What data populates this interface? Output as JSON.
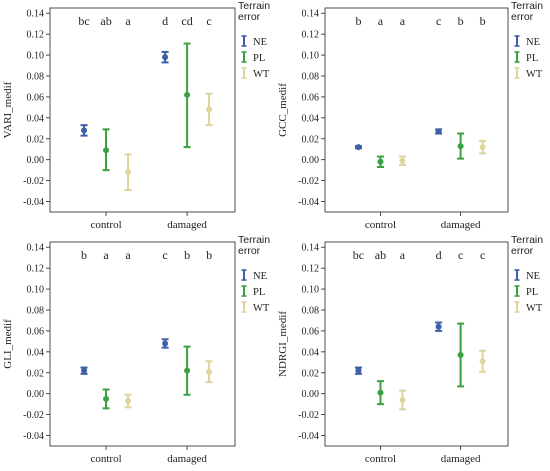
{
  "colors": {
    "NE": "#3d5ea8",
    "PL": "#3aa040",
    "WT": "#ddd59c"
  },
  "chart_data": [
    {
      "type": "errorbar",
      "ylabel": "VARI_medif",
      "categories": [
        "control",
        "damaged"
      ],
      "ylim": [
        -0.05,
        0.145
      ],
      "yticks": [
        "0.14",
        "0.12",
        "0.10",
        "0.08",
        "0.06",
        "0.04",
        "0.02",
        "0.00",
        "-0.02",
        "-0.04"
      ],
      "legend": {
        "title": "Terrain\nerror",
        "entries": [
          "NE",
          "PL",
          "WT"
        ]
      },
      "series": [
        {
          "name": "NE",
          "mean": [
            0.028,
            0.098
          ],
          "low": [
            0.023,
            0.093
          ],
          "high": [
            0.033,
            0.103
          ]
        },
        {
          "name": "PL",
          "mean": [
            0.009,
            0.062
          ],
          "low": [
            -0.01,
            0.012
          ],
          "high": [
            0.029,
            0.111
          ]
        },
        {
          "name": "WT",
          "mean": [
            -0.012,
            0.048
          ],
          "low": [
            -0.029,
            0.033
          ],
          "high": [
            0.005,
            0.063
          ]
        }
      ],
      "letters": [
        [
          "bc",
          "ab",
          "a"
        ],
        [
          "d",
          "cd",
          "c"
        ]
      ]
    },
    {
      "type": "errorbar",
      "ylabel": "GCC_medif",
      "categories": [
        "control",
        "damaged"
      ],
      "ylim": [
        -0.05,
        0.145
      ],
      "yticks": [
        "0.14",
        "0.12",
        "0.10",
        "0.08",
        "0.06",
        "0.04",
        "0.02",
        "0.00",
        "-0.02",
        "-0.04"
      ],
      "legend": {
        "title": "Terrain\nerror",
        "entries": [
          "NE",
          "PL",
          "WT"
        ]
      },
      "series": [
        {
          "name": "NE",
          "mean": [
            0.012,
            0.027
          ],
          "low": [
            0.011,
            0.025
          ],
          "high": [
            0.013,
            0.029
          ]
        },
        {
          "name": "PL",
          "mean": [
            -0.002,
            0.013
          ],
          "low": [
            -0.007,
            0.001
          ],
          "high": [
            0.003,
            0.025
          ]
        },
        {
          "name": "WT",
          "mean": [
            -0.001,
            0.012
          ],
          "low": [
            -0.005,
            0.006
          ],
          "high": [
            0.003,
            0.018
          ]
        }
      ],
      "letters": [
        [
          "b",
          "a",
          "a"
        ],
        [
          "c",
          "b",
          "b"
        ]
      ]
    },
    {
      "type": "errorbar",
      "ylabel": "GLI_medif",
      "categories": [
        "control",
        "damaged"
      ],
      "ylim": [
        -0.05,
        0.145
      ],
      "yticks": [
        "0.14",
        "0.12",
        "0.10",
        "0.08",
        "0.06",
        "0.04",
        "0.02",
        "0.00",
        "-0.02",
        "-0.04"
      ],
      "legend": {
        "title": "Terrain\nerror",
        "entries": [
          "NE",
          "PL",
          "WT"
        ]
      },
      "series": [
        {
          "name": "NE",
          "mean": [
            0.022,
            0.048
          ],
          "low": [
            0.019,
            0.044
          ],
          "high": [
            0.025,
            0.052
          ]
        },
        {
          "name": "PL",
          "mean": [
            -0.005,
            0.022
          ],
          "low": [
            -0.014,
            -0.001
          ],
          "high": [
            0.004,
            0.045
          ]
        },
        {
          "name": "WT",
          "mean": [
            -0.007,
            0.021
          ],
          "low": [
            -0.013,
            0.011
          ],
          "high": [
            -0.001,
            0.031
          ]
        }
      ],
      "letters": [
        [
          "b",
          "a",
          "a"
        ],
        [
          "c",
          "b",
          "b"
        ]
      ]
    },
    {
      "type": "errorbar",
      "ylabel": "NDRGI_medif",
      "categories": [
        "control",
        "damaged"
      ],
      "ylim": [
        -0.05,
        0.145
      ],
      "yticks": [
        "0.14",
        "0.12",
        "0.10",
        "0.08",
        "0.06",
        "0.04",
        "0.02",
        "0.00",
        "-0.02",
        "-0.04"
      ],
      "legend": {
        "title": "Terrain\nerror",
        "entries": [
          "NE",
          "PL",
          "WT"
        ]
      },
      "series": [
        {
          "name": "NE",
          "mean": [
            0.022,
            0.064
          ],
          "low": [
            0.019,
            0.06
          ],
          "high": [
            0.025,
            0.068
          ]
        },
        {
          "name": "PL",
          "mean": [
            0.001,
            0.037
          ],
          "low": [
            -0.01,
            0.007
          ],
          "high": [
            0.012,
            0.067
          ]
        },
        {
          "name": "WT",
          "mean": [
            -0.006,
            0.031
          ],
          "low": [
            -0.015,
            0.021
          ],
          "high": [
            0.003,
            0.041
          ]
        }
      ],
      "letters": [
        [
          "bc",
          "ab",
          "a"
        ],
        [
          "d",
          "c",
          "c"
        ]
      ]
    }
  ]
}
